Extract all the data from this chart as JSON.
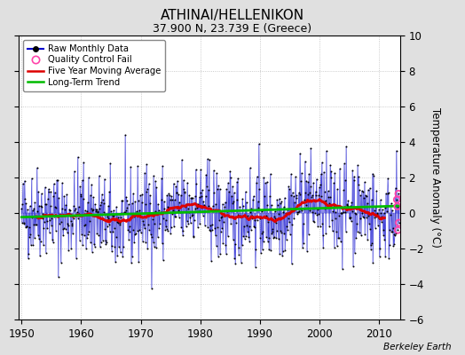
{
  "title": "ATHINAI/HELLENIKON",
  "subtitle": "37.900 N, 23.739 E (Greece)",
  "ylabel": "Temperature Anomaly (°C)",
  "credit": "Berkeley Earth",
  "year_start": 1950,
  "year_end": 2013,
  "ylim": [
    -6,
    10
  ],
  "yticks": [
    -6,
    -4,
    -2,
    0,
    2,
    4,
    6,
    8,
    10
  ],
  "xticks": [
    1950,
    1960,
    1970,
    1980,
    1990,
    2000,
    2010
  ],
  "raw_color": "#0000cc",
  "moving_avg_color": "#dd0000",
  "trend_color": "#00bb00",
  "qc_color": "#ff44aa",
  "bg_color": "#e0e0e0",
  "plot_bg_color": "#ffffff",
  "legend_labels": [
    "Raw Monthly Data",
    "Quality Control Fail",
    "Five Year Moving Average",
    "Long-Term Trend"
  ],
  "seed": 42
}
